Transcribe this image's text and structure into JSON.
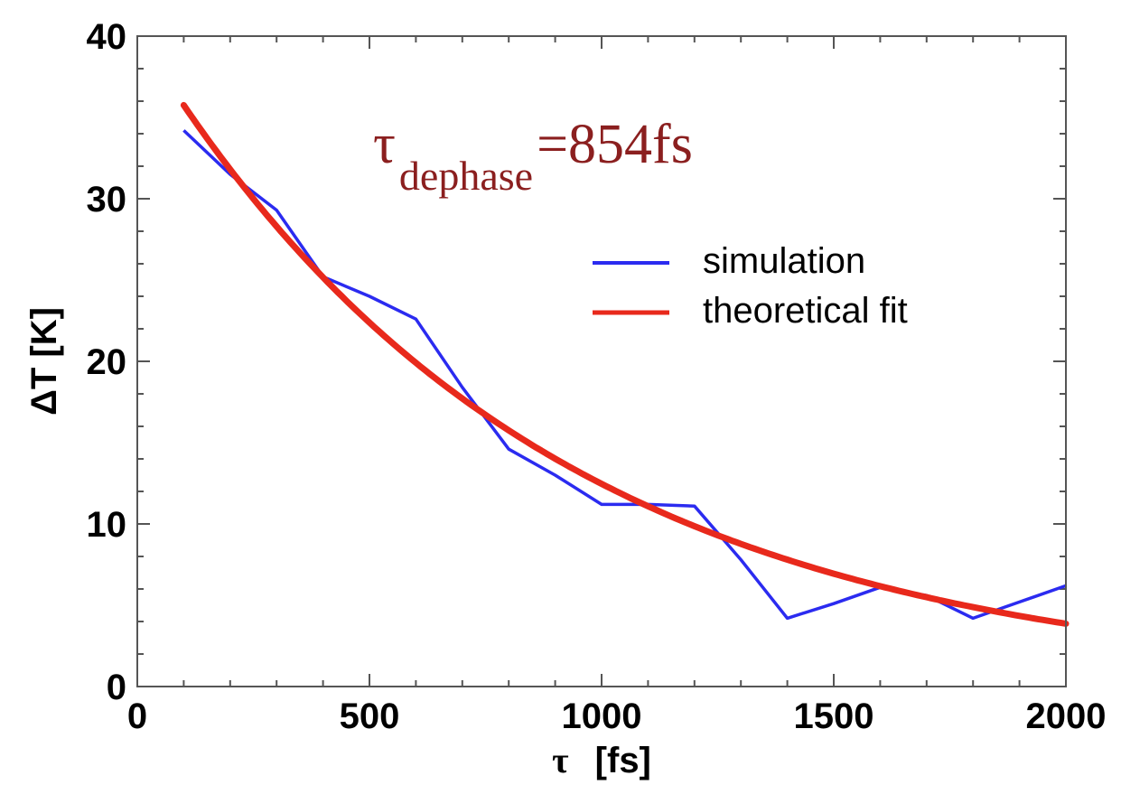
{
  "chart_data": {
    "type": "line",
    "xlabel_symbol": "τ",
    "xlabel_unit": "[fs]",
    "ylabel": "ΔT  [K]",
    "xlim": [
      0,
      2000
    ],
    "ylim": [
      0,
      40
    ],
    "xticks": [
      "0",
      "500",
      "1000",
      "1500",
      "2000"
    ],
    "yticks": [
      "0",
      "10",
      "20",
      "30",
      "40"
    ],
    "grid": false,
    "legend_position": "upper-right",
    "annotation": {
      "symbol": "τ",
      "subscript": "dephase",
      "value": "=854fs"
    },
    "series": [
      {
        "name": "simulation",
        "color": "#2b2bf0",
        "x": [
          100,
          200,
          300,
          400,
          500,
          600,
          700,
          800,
          900,
          1000,
          1100,
          1200,
          1300,
          1400,
          1500,
          1600,
          1700,
          1800,
          1900,
          2000
        ],
        "y": [
          34.2,
          31.5,
          29.3,
          25.2,
          24.0,
          22.6,
          18.4,
          14.6,
          13.0,
          11.2,
          11.2,
          11.1,
          7.8,
          4.2,
          5.1,
          6.1,
          5.6,
          4.2,
          5.2,
          6.2
        ]
      },
      {
        "name": "theoretical fit",
        "color": "#e8291c",
        "model": "A*exp(-x/854)",
        "A": 40.2,
        "tau": 854,
        "x_range": [
          100,
          2000
        ]
      }
    ]
  }
}
